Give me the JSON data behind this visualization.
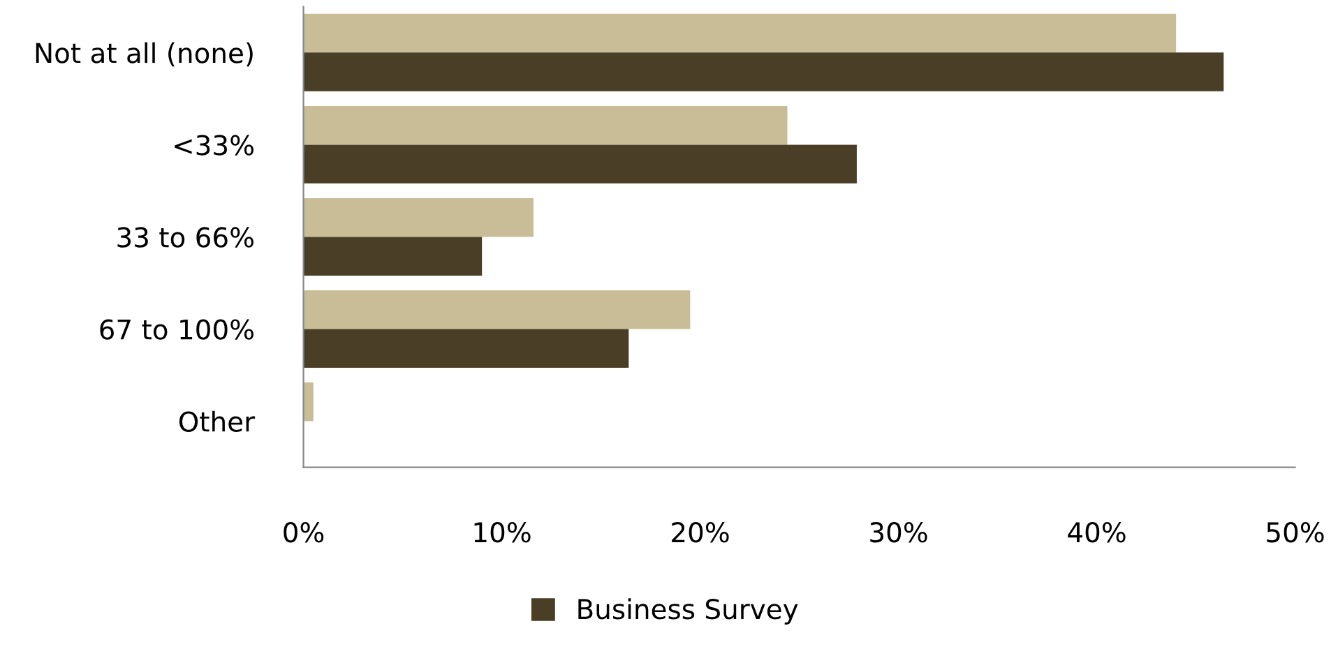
{
  "chart_data": {
    "type": "bar",
    "orientation": "horizontal",
    "categories": [
      "Not at all (none)",
      "<33%",
      "33 to 66%",
      "67 to 100%",
      "Other"
    ],
    "series": [
      {
        "color": "#c9bd97",
        "values": [
          44,
          24.4,
          11.6,
          19.5,
          0.5
        ]
      },
      {
        "name": "Business Survey",
        "color": "#4a3f26",
        "values": [
          46.4,
          27.9,
          9,
          16.4,
          0
        ]
      }
    ],
    "xlim": [
      0,
      50
    ],
    "xticks": [
      {
        "value": 0,
        "label": "0%"
      },
      {
        "value": 10,
        "label": "10%"
      },
      {
        "value": 20,
        "label": "20%"
      },
      {
        "value": 30,
        "label": "30%"
      },
      {
        "value": 40,
        "label": "40%"
      },
      {
        "value": 50,
        "label": "50%"
      }
    ],
    "grid": false,
    "legend": "bottom"
  }
}
